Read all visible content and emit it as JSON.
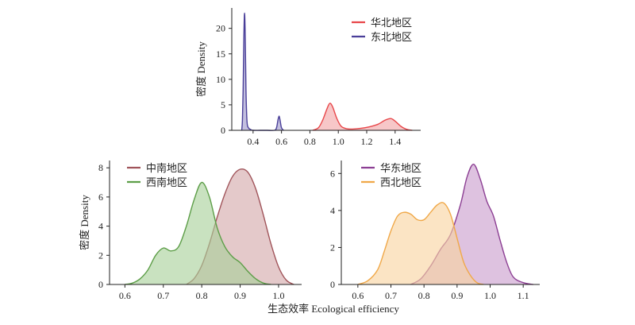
{
  "xlabel_shared": "生态效率 Ecological efficiency",
  "chart_data": [
    {
      "type": "area",
      "ylabel": "密度 Density",
      "xlim": [
        0.25,
        1.58
      ],
      "ylim": [
        0,
        24
      ],
      "xticks": [
        0.4,
        0.6,
        0.8,
        1.0,
        1.2,
        1.4
      ],
      "xtick_labels": [
        "0.4",
        "0.6",
        "0.8",
        "1.0",
        "1.2",
        "1.4"
      ],
      "yticks": [
        0,
        5,
        10,
        15,
        20
      ],
      "ytick_labels": [
        "0",
        "5",
        "10",
        "15",
        "20"
      ],
      "legend_position": "top-right",
      "series": [
        {
          "name": "华北地区",
          "color": "#e8474a",
          "fill": "#f2a4a6",
          "x": [
            0.82,
            0.86,
            0.89,
            0.92,
            0.94,
            0.96,
            0.99,
            1.02,
            1.06,
            1.1,
            1.16,
            1.22,
            1.28,
            1.33,
            1.37,
            1.4,
            1.44,
            1.48,
            1.52
          ],
          "y": [
            0,
            0.5,
            2.0,
            4.2,
            5.3,
            4.6,
            2.3,
            0.8,
            0.3,
            0.25,
            0.4,
            0.7,
            1.2,
            2.0,
            2.3,
            1.8,
            0.8,
            0.2,
            0
          ]
        },
        {
          "name": "东北地区",
          "color": "#4a3f99",
          "fill": "#9e97cc",
          "x": [
            0.32,
            0.325,
            0.33,
            0.335,
            0.34,
            0.345,
            0.35,
            0.355,
            0.36,
            0.37,
            0.38,
            0.4,
            0.45,
            0.5,
            0.55,
            0.565,
            0.575,
            0.583,
            0.59,
            0.6,
            0.615
          ],
          "y": [
            0,
            2,
            8,
            18,
            23,
            18,
            8,
            3,
            1,
            0.4,
            0.2,
            0,
            0,
            0,
            0,
            0.5,
            2.0,
            2.8,
            2.0,
            0.5,
            0
          ]
        }
      ]
    },
    {
      "type": "area",
      "ylabel": "密度 Density",
      "xlim": [
        0.56,
        1.06
      ],
      "ylim": [
        0,
        8.5
      ],
      "xticks": [
        0.6,
        0.7,
        0.8,
        0.9,
        1.0
      ],
      "xtick_labels": [
        "0.6",
        "0.7",
        "0.8",
        "0.9",
        "1.0"
      ],
      "yticks": [
        0,
        2,
        4,
        6,
        8
      ],
      "ytick_labels": [
        "0",
        "2",
        "4",
        "6",
        "8"
      ],
      "legend_position": "top-left",
      "series": [
        {
          "name": "中南地区",
          "color": "#a0545a",
          "fill": "#d4a8aa",
          "x": [
            0.76,
            0.78,
            0.8,
            0.82,
            0.84,
            0.86,
            0.88,
            0.9,
            0.92,
            0.94,
            0.96,
            0.98,
            1.0,
            1.02,
            1.04
          ],
          "y": [
            0,
            0.4,
            1.3,
            2.8,
            4.6,
            6.2,
            7.4,
            7.9,
            7.7,
            6.6,
            4.8,
            2.8,
            1.2,
            0.3,
            0
          ]
        },
        {
          "name": "西南地区",
          "color": "#5d9e48",
          "fill": "#a8d19a",
          "x": [
            0.6,
            0.62,
            0.64,
            0.66,
            0.68,
            0.7,
            0.72,
            0.74,
            0.76,
            0.78,
            0.8,
            0.82,
            0.84,
            0.86,
            0.88,
            0.9,
            0.92,
            0.94,
            0.96,
            0.98
          ],
          "y": [
            0,
            0.1,
            0.4,
            1.0,
            2.0,
            2.5,
            2.3,
            2.6,
            4.0,
            5.8,
            7.0,
            6.0,
            3.9,
            2.6,
            1.9,
            1.5,
            0.9,
            0.4,
            0.1,
            0
          ]
        }
      ]
    },
    {
      "type": "area",
      "ylabel": "",
      "xlim": [
        0.55,
        1.15
      ],
      "ylim": [
        0,
        6.7
      ],
      "xticks": [
        0.6,
        0.7,
        0.8,
        0.9,
        1.0,
        1.1
      ],
      "xtick_labels": [
        "0.6",
        "0.7",
        "0.8",
        "0.9",
        "1.0",
        "1.1"
      ],
      "yticks": [
        0,
        2,
        4,
        6
      ],
      "ytick_labels": [
        "0",
        "2",
        "4",
        "6"
      ],
      "legend_position": "top-left",
      "series": [
        {
          "name": "华东地区",
          "color": "#8c3f93",
          "fill": "#c99ccd",
          "x": [
            0.76,
            0.79,
            0.82,
            0.85,
            0.88,
            0.91,
            0.93,
            0.95,
            0.97,
            0.99,
            1.01,
            1.03,
            1.05,
            1.07,
            1.1,
            1.13
          ],
          "y": [
            0,
            0.3,
            1.0,
            1.9,
            2.7,
            4.3,
            5.8,
            6.5,
            5.7,
            4.5,
            3.7,
            2.4,
            1.2,
            0.4,
            0.1,
            0
          ]
        },
        {
          "name": "西北地区",
          "color": "#f0a848",
          "fill": "#f8d3a0",
          "x": [
            0.6,
            0.63,
            0.66,
            0.68,
            0.7,
            0.72,
            0.74,
            0.76,
            0.78,
            0.8,
            0.82,
            0.84,
            0.86,
            0.88,
            0.9,
            0.92,
            0.94,
            0.96,
            0.98
          ],
          "y": [
            0,
            0.2,
            0.8,
            1.8,
            2.9,
            3.7,
            3.9,
            3.8,
            3.5,
            3.5,
            3.9,
            4.3,
            4.4,
            3.8,
            2.5,
            1.2,
            0.5,
            0.1,
            0
          ]
        }
      ]
    }
  ]
}
